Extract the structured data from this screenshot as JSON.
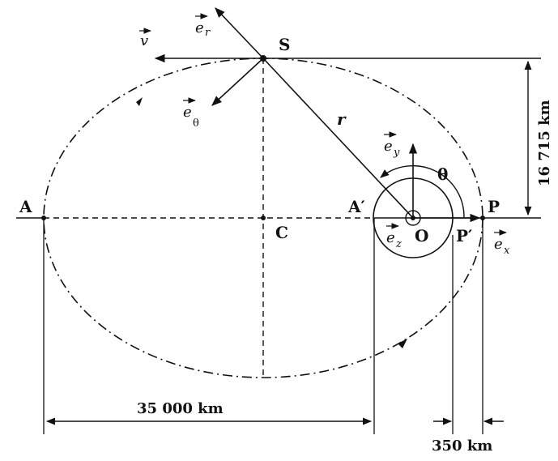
{
  "points": {
    "A": "A",
    "A_prime": "A′",
    "C": "C",
    "O": "O",
    "P": "P",
    "P_prime": "P′",
    "S": "S"
  },
  "vectors": {
    "v": "v",
    "e_r_base": "e",
    "e_r_sub": "r",
    "e_theta_base": "e",
    "e_theta_sub": "θ",
    "e_x_base": "e",
    "e_x_sub": "x",
    "e_y_base": "e",
    "e_y_sub": "y",
    "e_z_base": "e",
    "e_z_sub": "z"
  },
  "symbols": {
    "r": "r",
    "theta": "θ"
  },
  "dimensions": {
    "semi_major": "35 000 km",
    "semi_minor": "16 715 km",
    "perigee_gap": "350 km"
  }
}
